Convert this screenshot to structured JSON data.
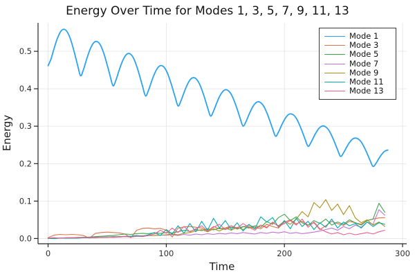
{
  "figure": {
    "title": "Energy Over Time for Modes 1, 3, 5, 7, 9, 11, 13"
  },
  "chart_data": {
    "type": "line",
    "title": "Energy Over Time for Modes 1, 3, 5, 7, 9, 11, 13",
    "xlabel": "Time",
    "ylabel": "Energy",
    "xlim": [
      -8.5,
      303.5
    ],
    "ylim": [
      -0.014,
      0.576
    ],
    "xticks": [
      0,
      100,
      200,
      300
    ],
    "xtick_labels": [
      "0",
      "100",
      "200",
      "300"
    ],
    "yticks": [
      0.0,
      0.1,
      0.2,
      0.3,
      0.4,
      0.5
    ],
    "ytick_labels": [
      "0.0",
      "0.1",
      "0.2",
      "0.3",
      "0.4",
      "0.5"
    ],
    "grid": true,
    "grid_color": "#e6e6ea",
    "axis_color": "#24242a",
    "legend_position": "top-right",
    "legend_border_color": "#36363b",
    "series": [
      {
        "name": "Mode 1",
        "color": "#2aa2f2",
        "width": 1.8,
        "smooth": true,
        "t_start": 0,
        "t_step": 2.5,
        "values": [
          0.4616,
          0.4797,
          0.5068,
          0.5314,
          0.5495,
          0.5583,
          0.5565,
          0.544,
          0.5221,
          0.4936,
          0.4625,
          0.4347,
          0.4518,
          0.4775,
          0.5008,
          0.5179,
          0.5261,
          0.5242,
          0.5122,
          0.4912,
          0.464,
          0.4343,
          0.4078,
          0.4239,
          0.4482,
          0.4702,
          0.4863,
          0.4939,
          0.4919,
          0.4804,
          0.4603,
          0.4344,
          0.4061,
          0.3809,
          0.396,
          0.4189,
          0.4396,
          0.4547,
          0.4617,
          0.4596,
          0.4486,
          0.4294,
          0.4048,
          0.3779,
          0.354,
          0.3681,
          0.3896,
          0.409,
          0.4231,
          0.4295,
          0.4273,
          0.4168,
          0.3985,
          0.3752,
          0.3497,
          0.3271,
          0.3402,
          0.3603,
          0.3784,
          0.3915,
          0.3973,
          0.395,
          0.385,
          0.3676,
          0.3456,
          0.3215,
          0.3002,
          0.3123,
          0.331,
          0.3478,
          0.3599,
          0.3651,
          0.3627,
          0.3532,
          0.3367,
          0.316,
          0.2933,
          0.2733,
          0.2844,
          0.3017,
          0.3172,
          0.3283,
          0.3329,
          0.3304,
          0.3214,
          0.3058,
          0.2864,
          0.2651,
          0.2464,
          0.2565,
          0.2724,
          0.2866,
          0.2967,
          0.3007,
          0.2981,
          0.2896,
          0.2749,
          0.2568,
          0.2369,
          0.2195,
          0.2286,
          0.2431,
          0.256,
          0.2651,
          0.2685,
          0.2658,
          0.2578,
          0.244,
          0.2272,
          0.2087,
          0.1926,
          0.2007,
          0.2138,
          0.2254,
          0.2335,
          0.2363
        ]
      },
      {
        "name": "Mode 3",
        "color": "#e2704a",
        "width": 1.1,
        "smooth": false,
        "t_start": 0,
        "t_step": 5,
        "values": [
          0.002,
          0.009,
          0.011,
          0.01,
          0.011,
          0.01,
          0.008,
          0.001,
          0.014,
          0.016,
          0.017,
          0.016,
          0.015,
          0.012,
          0.002,
          0.022,
          0.027,
          0.028,
          0.026,
          0.027,
          0.022,
          0.004,
          0.028,
          0.031,
          0.032,
          0.03,
          0.028,
          0.02,
          0.032,
          0.026,
          0.028,
          0.034,
          0.025,
          0.031,
          0.036,
          0.03,
          0.026,
          0.038,
          0.032,
          0.028,
          0.044,
          0.05,
          0.039,
          0.046,
          0.036,
          0.042,
          0.024,
          0.034,
          0.046,
          0.04,
          0.035,
          0.046,
          0.042,
          0.038,
          0.048,
          0.052,
          0.055,
          0.056
        ]
      },
      {
        "name": "Mode 5",
        "color": "#3da44d",
        "width": 1.1,
        "smooth": false,
        "t_start": 0,
        "t_step": 5,
        "values": [
          0.0,
          0.001,
          0.001,
          0.002,
          0.002,
          0.003,
          0.003,
          0.004,
          0.005,
          0.006,
          0.007,
          0.008,
          0.01,
          0.012,
          0.011,
          0.013,
          0.014,
          0.013,
          0.015,
          0.014,
          0.016,
          0.015,
          0.018,
          0.022,
          0.019,
          0.024,
          0.021,
          0.026,
          0.023,
          0.028,
          0.024,
          0.03,
          0.026,
          0.032,
          0.028,
          0.034,
          0.03,
          0.045,
          0.038,
          0.056,
          0.065,
          0.048,
          0.058,
          0.042,
          0.035,
          0.048,
          0.04,
          0.052,
          0.036,
          0.044,
          0.038,
          0.05,
          0.042,
          0.036,
          0.048,
          0.052,
          0.094,
          0.07
        ]
      },
      {
        "name": "Mode 7",
        "color": "#c271d2",
        "width": 1.1,
        "smooth": false,
        "t_start": 0,
        "t_step": 5,
        "values": [
          0.0,
          0.001,
          0.001,
          0.001,
          0.002,
          0.002,
          0.002,
          0.003,
          0.003,
          0.004,
          0.004,
          0.005,
          0.005,
          0.006,
          0.006,
          0.007,
          0.007,
          0.008,
          0.008,
          0.009,
          0.009,
          0.01,
          0.008,
          0.011,
          0.009,
          0.012,
          0.01,
          0.013,
          0.011,
          0.014,
          0.012,
          0.015,
          0.013,
          0.016,
          0.014,
          0.012,
          0.016,
          0.014,
          0.017,
          0.015,
          0.018,
          0.014,
          0.016,
          0.013,
          0.015,
          0.017,
          0.02,
          0.024,
          0.028,
          0.022,
          0.032,
          0.026,
          0.036,
          0.03,
          0.044,
          0.038,
          0.077,
          0.062
        ]
      },
      {
        "name": "Mode 9",
        "color": "#ac8d18",
        "width": 1.1,
        "smooth": false,
        "t_start": 0,
        "t_step": 5,
        "values": [
          0.0,
          0.0,
          0.001,
          0.001,
          0.001,
          0.002,
          0.002,
          0.002,
          0.003,
          0.003,
          0.004,
          0.004,
          0.005,
          0.005,
          0.006,
          0.006,
          0.007,
          0.008,
          0.008,
          0.009,
          0.01,
          0.012,
          0.01,
          0.014,
          0.016,
          0.02,
          0.024,
          0.018,
          0.026,
          0.02,
          0.028,
          0.022,
          0.03,
          0.024,
          0.032,
          0.026,
          0.036,
          0.03,
          0.042,
          0.034,
          0.046,
          0.038,
          0.052,
          0.072,
          0.058,
          0.096,
          0.082,
          0.104,
          0.075,
          0.092,
          0.064,
          0.088,
          0.055,
          0.042,
          0.05,
          0.036,
          0.044,
          0.032
        ]
      },
      {
        "name": "Mode 11",
        "color": "#00a9ad",
        "width": 1.1,
        "smooth": false,
        "t_start": 0,
        "t_step": 5,
        "values": [
          0.0,
          0.0,
          0.001,
          0.001,
          0.001,
          0.001,
          0.002,
          0.002,
          0.002,
          0.003,
          0.003,
          0.004,
          0.004,
          0.005,
          0.006,
          0.008,
          0.006,
          0.01,
          0.016,
          0.008,
          0.024,
          0.012,
          0.034,
          0.014,
          0.04,
          0.018,
          0.046,
          0.022,
          0.054,
          0.028,
          0.048,
          0.024,
          0.042,
          0.02,
          0.038,
          0.026,
          0.058,
          0.044,
          0.056,
          0.03,
          0.048,
          0.026,
          0.054,
          0.032,
          0.046,
          0.024,
          0.042,
          0.03,
          0.052,
          0.028,
          0.044,
          0.034,
          0.04,
          0.028,
          0.044,
          0.032,
          0.042,
          0.038
        ]
      },
      {
        "name": "Mode 13",
        "color": "#ed5d92",
        "width": 1.1,
        "smooth": false,
        "t_start": 0,
        "t_step": 5,
        "values": [
          0.001,
          0.002,
          0.001,
          0.002,
          0.002,
          0.002,
          0.003,
          0.002,
          0.003,
          0.003,
          0.004,
          0.003,
          0.004,
          0.005,
          0.004,
          0.006,
          0.005,
          0.008,
          0.012,
          0.022,
          0.014,
          0.028,
          0.016,
          0.032,
          0.018,
          0.026,
          0.034,
          0.02,
          0.03,
          0.038,
          0.024,
          0.034,
          0.028,
          0.04,
          0.03,
          0.022,
          0.036,
          0.028,
          0.044,
          0.032,
          0.04,
          0.048,
          0.036,
          0.052,
          0.03,
          0.044,
          0.026,
          0.018,
          0.012,
          0.016,
          0.01,
          0.014,
          0.01,
          0.013,
          0.016,
          0.012,
          0.018,
          0.022
        ]
      }
    ]
  }
}
